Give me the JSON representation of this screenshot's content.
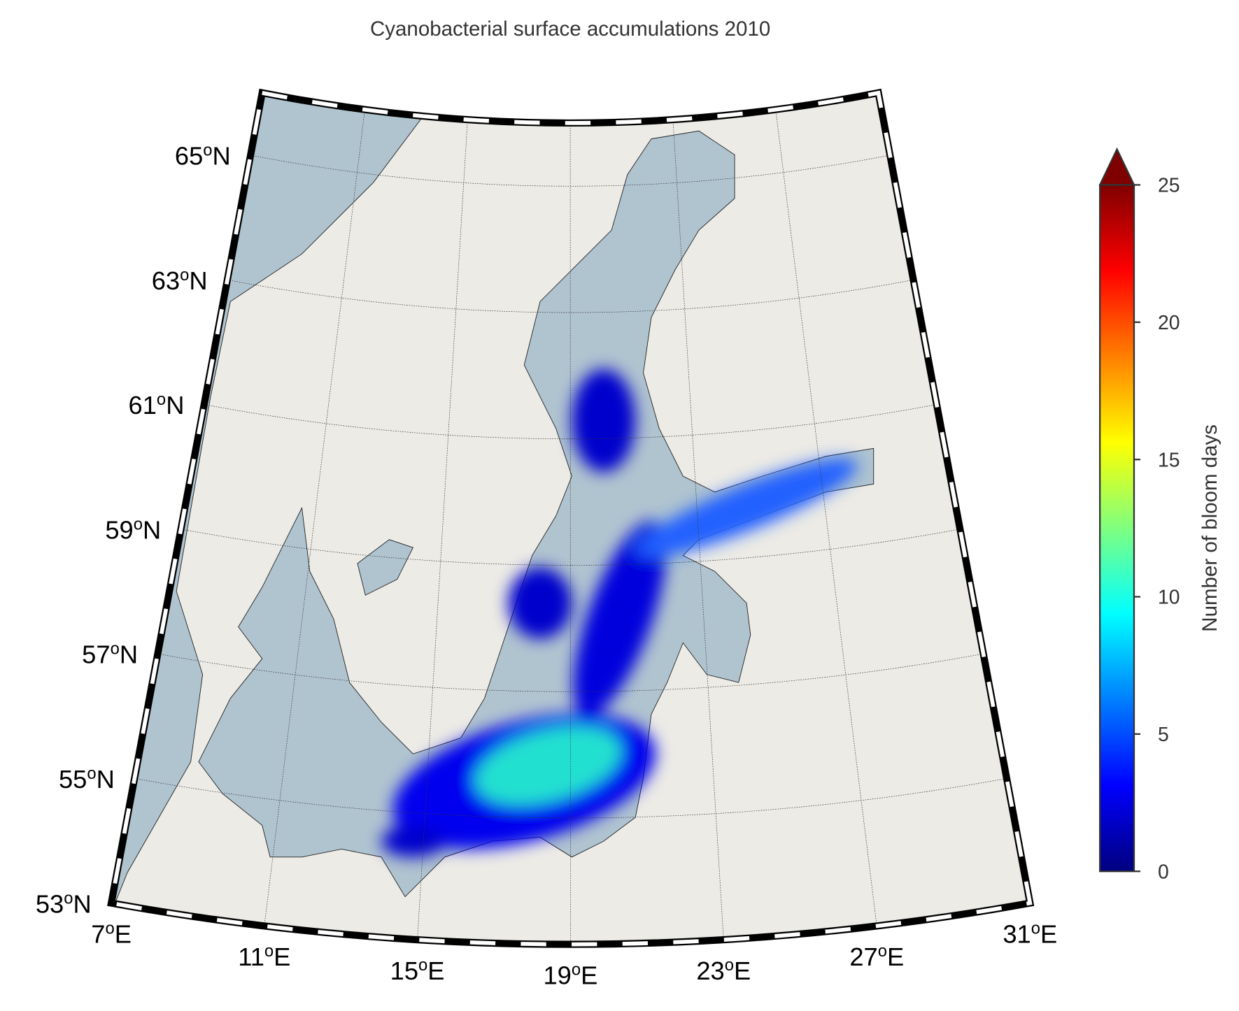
{
  "title": "Cyanobacterial surface accumulations 2010",
  "map": {
    "lat_ticks": [
      53,
      55,
      57,
      59,
      61,
      63,
      65
    ],
    "lon_ticks": [
      7,
      11,
      15,
      19,
      23,
      27,
      31
    ],
    "degree_mark": "o",
    "north": "N",
    "east": "E",
    "grid": true
  },
  "colorbar": {
    "label": "Number of bloom days",
    "lim": [
      0,
      25
    ],
    "ticks": [
      0,
      5,
      10,
      15,
      20,
      25
    ],
    "extend": "max",
    "colors": [
      "#00007f",
      "#0000ff",
      "#007fff",
      "#00ffff",
      "#7fff7f",
      "#ffff00",
      "#ff7f00",
      "#ff0000",
      "#7f0000"
    ]
  }
}
